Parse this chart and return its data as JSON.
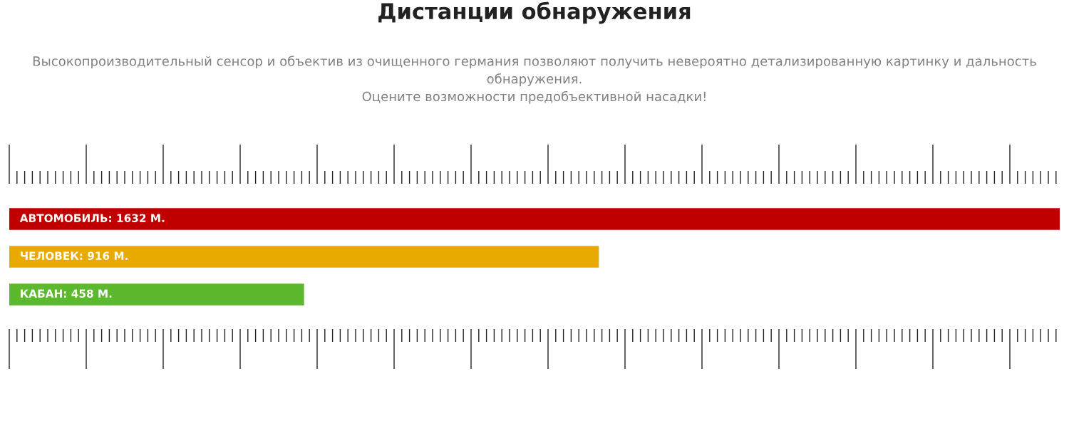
{
  "chart_data": {
    "type": "bar",
    "orientation": "horizontal",
    "title": "Дистанции обнаружения",
    "subtitle": "Высокопроизводительный сенсор и объектив из очищенного германия позволяют получить невероятно детализированную картинку и дальность обнаружения.\nОцените возможности предобъективной насадки!",
    "categories": [
      null,
      null,
      null
    ],
    "values": [
      1632,
      916,
      458
    ],
    "colors": [
      "#c00000",
      "#e8a900",
      "#5cb82c"
    ],
    "value_labels": [
      "АВТОМОБИЛЬ: 1632 М.",
      "ЧЕЛОВЕК: 916 М.",
      "КАБАН: 458 М."
    ],
    "grid": false,
    "legend": false
  }
}
